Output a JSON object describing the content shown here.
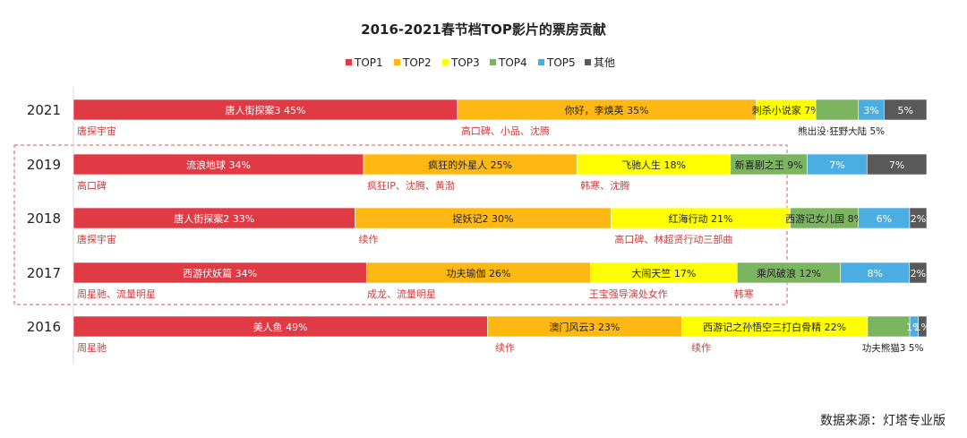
{
  "chart_data": {
    "type": "bar",
    "orientation": "horizontal-stacked-100",
    "title": "2016-2021春节档TOP影片的票房贡献",
    "legend": [
      "TOP1",
      "TOP2",
      "TOP3",
      "TOP4",
      "TOP5",
      "其他"
    ],
    "legend_position": "top",
    "colors": {
      "TOP1": "#e03a44",
      "TOP2": "#fdb813",
      "TOP3": "#ffff00",
      "TOP4": "#7bb55f",
      "TOP5": "#4aaee3",
      "其他": "#595959"
    },
    "categories": [
      "2021",
      "2019",
      "2018",
      "2017",
      "2016"
    ],
    "rows": [
      {
        "year": "2021",
        "segments": [
          {
            "key": "TOP1",
            "value": 45,
            "label": "唐人街探案3 45%"
          },
          {
            "key": "TOP2",
            "value": 35,
            "label": "你好，李焕英 35%"
          },
          {
            "key": "TOP3",
            "value": 7,
            "label": "刺杀小说家 7%"
          },
          {
            "key": "TOP4",
            "value": 5,
            "label": ""
          },
          {
            "key": "TOP5",
            "value": 3,
            "label": "3%"
          },
          {
            "key": "其他",
            "value": 5,
            "label": "5%"
          }
        ],
        "notes": [
          {
            "text": "唐探宇宙",
            "at": 0,
            "color": "red"
          },
          {
            "text": "高口碑、小品、沈腾",
            "at": 45,
            "color": "red"
          },
          {
            "text": "熊出没·狂野大陆 5%",
            "at": 84.5,
            "color": "black"
          }
        ]
      },
      {
        "year": "2019",
        "segments": [
          {
            "key": "TOP1",
            "value": 34,
            "label": "流浪地球 34%"
          },
          {
            "key": "TOP2",
            "value": 25,
            "label": "疯狂的外星人 25%"
          },
          {
            "key": "TOP3",
            "value": 18,
            "label": "飞驰人生 18%"
          },
          {
            "key": "TOP4",
            "value": 9,
            "label": "新喜剧之王 9%"
          },
          {
            "key": "TOP5",
            "value": 7,
            "label": "7%"
          },
          {
            "key": "其他",
            "value": 7,
            "label": "7%"
          }
        ],
        "notes": [
          {
            "text": "高口碑",
            "at": 0,
            "color": "red"
          },
          {
            "text": "疯狂IP、沈腾、黄渤",
            "at": 34,
            "color": "red"
          },
          {
            "text": "韩寒、沈腾",
            "at": 59,
            "color": "red"
          }
        ]
      },
      {
        "year": "2018",
        "segments": [
          {
            "key": "TOP1",
            "value": 33,
            "label": "唐人街探案2 33%"
          },
          {
            "key": "TOP2",
            "value": 30,
            "label": "捉妖记2 30%"
          },
          {
            "key": "TOP3",
            "value": 21,
            "label": "红海行动 21%"
          },
          {
            "key": "TOP4",
            "value": 8,
            "label": "西游记女儿国 8%"
          },
          {
            "key": "TOP5",
            "value": 6,
            "label": "6%"
          },
          {
            "key": "其他",
            "value": 2,
            "label": "2%"
          }
        ],
        "notes": [
          {
            "text": "唐探宇宙",
            "at": 0,
            "color": "red"
          },
          {
            "text": "续作",
            "at": 33,
            "color": "red"
          },
          {
            "text": "高口碑、林超贤行动三部曲",
            "at": 63,
            "color": "red"
          }
        ]
      },
      {
        "year": "2017",
        "segments": [
          {
            "key": "TOP1",
            "value": 34,
            "label": "西游伏妖篇 34%"
          },
          {
            "key": "TOP2",
            "value": 26,
            "label": "功夫瑜伽 26%"
          },
          {
            "key": "TOP3",
            "value": 17,
            "label": "大闹天竺 17%"
          },
          {
            "key": "TOP4",
            "value": 12,
            "label": "乘风破浪 12%"
          },
          {
            "key": "TOP5",
            "value": 8,
            "label": "8%"
          },
          {
            "key": "其他",
            "value": 2,
            "label": "2%"
          }
        ],
        "notes": [
          {
            "text": "周星驰、流量明星",
            "at": 0,
            "color": "red"
          },
          {
            "text": "成龙、流量明星",
            "at": 34,
            "color": "red"
          },
          {
            "text": "王宝强导演处女作",
            "at": 60,
            "color": "red"
          },
          {
            "text": "韩寒",
            "at": 77,
            "color": "red"
          }
        ]
      },
      {
        "year": "2016",
        "segments": [
          {
            "key": "TOP1",
            "value": 49,
            "label": "美人鱼 49%"
          },
          {
            "key": "TOP2",
            "value": 23,
            "label": "澳门风云3 23%"
          },
          {
            "key": "TOP3",
            "value": 22,
            "label": "西游记之孙悟空三打白骨精 22%"
          },
          {
            "key": "TOP4",
            "value": 5,
            "label": ""
          },
          {
            "key": "TOP5",
            "value": 1,
            "label": "1%"
          },
          {
            "key": "其他",
            "value": 1,
            "label": "1%"
          }
        ],
        "notes": [
          {
            "text": "周星驰",
            "at": 0,
            "color": "red"
          },
          {
            "text": "续作",
            "at": 49,
            "color": "red"
          },
          {
            "text": "续作",
            "at": 72,
            "color": "red"
          },
          {
            "text": "功夫熊猫3 5%",
            "at": 92,
            "color": "black"
          }
        ]
      }
    ],
    "highlight": {
      "rows": [
        "2019",
        "2018",
        "2017"
      ],
      "style": "dashed-box"
    },
    "source": "数据来源：灯塔专业版"
  }
}
